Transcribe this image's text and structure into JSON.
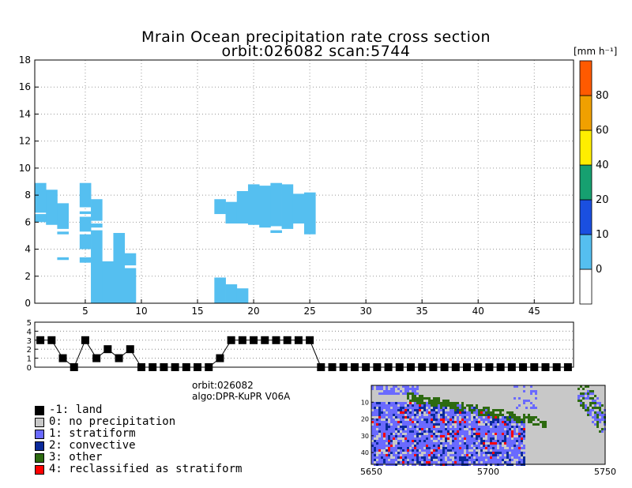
{
  "title_line1": "Mrain Ocean precipitation rate cross section",
  "title_line2": "orbit:026082     scan:5744",
  "colorbar": {
    "unit": "[mm h⁻¹]",
    "labels": [
      "0",
      "10",
      "20",
      "40",
      "60",
      "80"
    ],
    "colors": [
      "#ffffff",
      "#55bff0",
      "#1a4fe0",
      "#16a070",
      "#ffee00",
      "#f0a000",
      "#ff5a00"
    ]
  },
  "info": {
    "orbit": "orbit:026082",
    "algo": "algo:DPR-KuPR V06A"
  },
  "legend": [
    {
      "label": "-1: land",
      "color": "#000000"
    },
    {
      "label": "0: no precipitation",
      "color": "#c8c8c8"
    },
    {
      "label": "1: stratiform",
      "color": "#6a6aff"
    },
    {
      "label": "2: convective",
      "color": "#0a2a9a"
    },
    {
      "label": "3: other",
      "color": "#2d6a10"
    },
    {
      "label": "4: reclassified as stratiform",
      "color": "#ff0000"
    }
  ],
  "chart_data": [
    {
      "type": "heatmap",
      "title": "Mrain Ocean precipitation rate cross section",
      "xlim": [
        0.5,
        48.5
      ],
      "ylim": [
        0,
        18
      ],
      "xticks": [
        5,
        10,
        15,
        20,
        25,
        30,
        35,
        40,
        45
      ],
      "yticks": [
        0,
        2,
        4,
        6,
        8,
        10,
        12,
        14,
        16,
        18
      ],
      "grid": true,
      "color": "#55bff0",
      "cells": [
        {
          "x": 1,
          "y": [
            6.7,
            8.9
          ]
        },
        {
          "x": 1,
          "y": [
            6.0,
            6.6
          ]
        },
        {
          "x": 2,
          "y": [
            5.8,
            8.4
          ]
        },
        {
          "x": 3,
          "y": [
            5.5,
            7.4
          ]
        },
        {
          "x": 3,
          "y": [
            5.1,
            5.3
          ]
        },
        {
          "x": 3,
          "y": [
            3.2,
            3.4
          ]
        },
        {
          "x": 5,
          "y": [
            7.1,
            8.9
          ]
        },
        {
          "x": 5,
          "y": [
            6.6,
            6.8
          ]
        },
        {
          "x": 5,
          "y": [
            5.3,
            6.4
          ]
        },
        {
          "x": 5,
          "y": [
            4.0,
            5.1
          ]
        },
        {
          "x": 5,
          "y": [
            3.0,
            3.4
          ]
        },
        {
          "x": 6,
          "y": [
            6.1,
            7.7
          ]
        },
        {
          "x": 6,
          "y": [
            5.6,
            5.9
          ]
        },
        {
          "x": 6,
          "y": [
            0.0,
            5.4
          ]
        },
        {
          "x": 7,
          "y": [
            0.0,
            3.1
          ]
        },
        {
          "x": 8,
          "y": [
            0.0,
            5.2
          ]
        },
        {
          "x": 9,
          "y": [
            2.8,
            3.7
          ]
        },
        {
          "x": 9,
          "y": [
            0.0,
            2.6
          ]
        },
        {
          "x": 17,
          "y": [
            6.6,
            7.7
          ]
        },
        {
          "x": 17,
          "y": [
            0.0,
            1.9
          ]
        },
        {
          "x": 18,
          "y": [
            5.9,
            7.5
          ]
        },
        {
          "x": 18,
          "y": [
            0.0,
            1.4
          ]
        },
        {
          "x": 19,
          "y": [
            5.9,
            8.3
          ]
        },
        {
          "x": 19,
          "y": [
            0.0,
            1.1
          ]
        },
        {
          "x": 20,
          "y": [
            5.8,
            8.8
          ]
        },
        {
          "x": 21,
          "y": [
            5.6,
            8.7
          ]
        },
        {
          "x": 22,
          "y": [
            5.7,
            8.9
          ]
        },
        {
          "x": 22,
          "y": [
            5.2,
            5.4
          ]
        },
        {
          "x": 23,
          "y": [
            5.5,
            8.8
          ]
        },
        {
          "x": 24,
          "y": [
            5.9,
            8.1
          ]
        },
        {
          "x": 25,
          "y": [
            5.1,
            8.2
          ]
        }
      ]
    },
    {
      "type": "line",
      "xlim": [
        0.5,
        48.5
      ],
      "ylim": [
        0,
        5
      ],
      "yticks": [
        0,
        1,
        2,
        3,
        4,
        5
      ],
      "values": [
        3,
        3,
        1,
        0,
        3,
        1,
        2,
        1,
        2,
        0,
        0,
        0,
        0,
        0,
        0,
        0,
        1,
        3,
        3,
        3,
        3,
        3,
        3,
        3,
        3,
        0,
        0,
        0,
        0,
        0,
        0,
        0,
        0,
        0,
        0,
        0,
        0,
        0,
        0,
        0,
        0,
        0,
        0,
        0,
        0,
        0,
        0,
        0
      ]
    },
    {
      "type": "heatmap",
      "xticks": [
        5650,
        5700,
        5750
      ],
      "yticks": [
        10,
        20,
        30,
        40
      ]
    }
  ]
}
